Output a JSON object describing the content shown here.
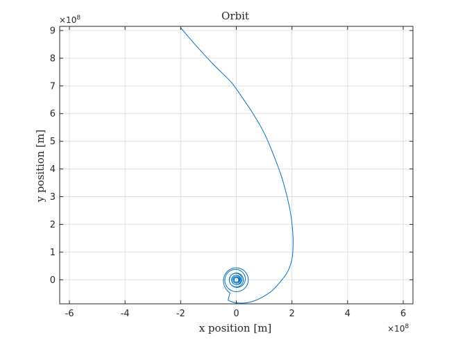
{
  "chart_data": {
    "type": "line",
    "title": "Orbit",
    "xlabel": "x position [m]",
    "ylabel": "y position [m]",
    "xlim": [
      -6.35,
      6.35
    ],
    "ylim": [
      -0.87,
      9.15
    ],
    "x_multiplier": "×10",
    "y_multiplier": "×10",
    "multiplier_exponent": "8",
    "x_ticks": [
      -6,
      -4,
      -2,
      0,
      2,
      4,
      6
    ],
    "y_ticks": [
      0,
      1,
      2,
      3,
      4,
      5,
      6,
      7,
      8,
      9
    ],
    "x_tick_labels": [
      "-6",
      "-4",
      "-2",
      "0",
      "2",
      "4",
      "6"
    ],
    "y_tick_labels": [
      "0",
      "1",
      "2",
      "3",
      "4",
      "5",
      "6",
      "7",
      "8",
      "9"
    ],
    "grid": true,
    "line_color": "#0072BD",
    "series": [
      {
        "x": [
          -2.0,
          -1.4,
          -0.8,
          -0.2,
          0.2,
          0.6,
          1.0,
          1.3,
          1.6,
          1.8,
          1.95,
          2.03,
          2.04,
          2.0,
          1.85,
          1.6,
          1.3,
          0.95,
          0.6,
          0.3,
          0.05,
          -0.15,
          -0.3
        ],
        "y": [
          9.1,
          8.4,
          7.75,
          7.15,
          6.6,
          6.0,
          5.3,
          4.6,
          3.8,
          3.1,
          2.4,
          1.7,
          1.2,
          0.75,
          0.3,
          -0.05,
          -0.38,
          -0.62,
          -0.78,
          -0.84,
          -0.84,
          -0.8,
          -0.74
        ]
      }
    ],
    "spiral_center": [
      0.0,
      0.0
    ],
    "spiral_outer_radius": 0.6,
    "spiral_inner_radius": 0.08
  }
}
